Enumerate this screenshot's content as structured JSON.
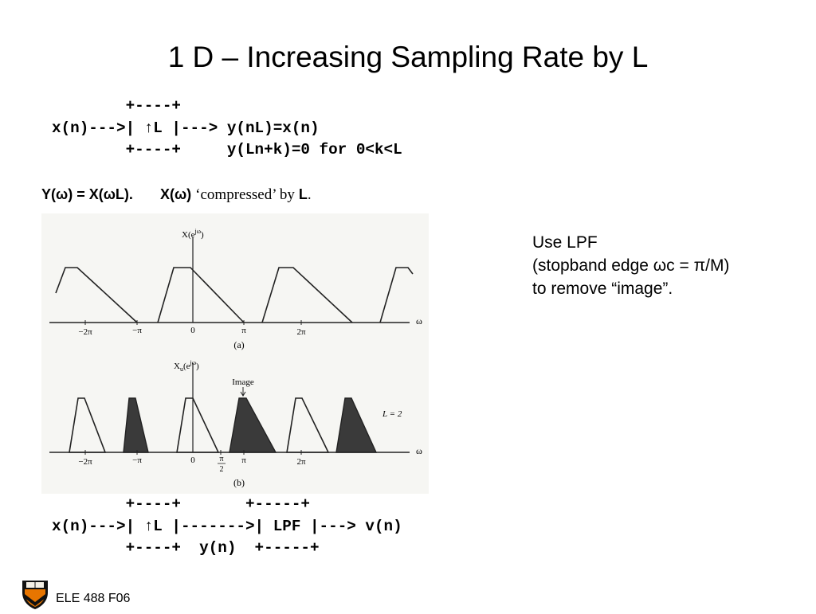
{
  "slide": {
    "title": "1 D – Increasing Sampling Rate by L"
  },
  "block1": {
    "lines": [
      "        +----+",
      "x(n)--->| ↑L |---> y(nL)=x(n)",
      "        +----+     y(Ln+k)=0 for 0<k<L"
    ]
  },
  "equation": {
    "part1": "Y(ω) = X(ωL).",
    "part2": "X(ω)",
    "part3": "‘compressed’ by",
    "part4": "L",
    "part5": "."
  },
  "note": {
    "lines": [
      "Use LPF",
      "(stopband edge ωc = π/M)",
      "to remove “image”."
    ]
  },
  "figure": {
    "a": {
      "ylabel": "X(e",
      "ylabel_sup": "jω",
      "ylabel_close": ")",
      "axis_label": "ω",
      "ticks": [
        "−2π",
        "−π",
        "0",
        "π",
        "2π"
      ],
      "caption": "(a)"
    },
    "b": {
      "ylabel": "X",
      "ylabel_sub": "u",
      "ylabel_mid": "(e",
      "ylabel_sup": "jω",
      "ylabel_close": ")",
      "image_label": "Image",
      "l_label": "L = 2",
      "axis_label": "ω",
      "ticks": [
        "−2π",
        "−π",
        "0",
        "π",
        "2π"
      ],
      "frac_num": "π",
      "frac_den": "2",
      "caption": "(b)"
    }
  },
  "block2": {
    "lines": [
      "        +----+       +-----+",
      "x(n)--->| ↑L |------->| LPF |---> v(n)",
      "        +----+  y(n)  +-----+"
    ]
  },
  "footer": {
    "label": "ELE 488 F06"
  },
  "colors": {
    "shield_orange": "#e77500",
    "shield_black": "#111111"
  }
}
